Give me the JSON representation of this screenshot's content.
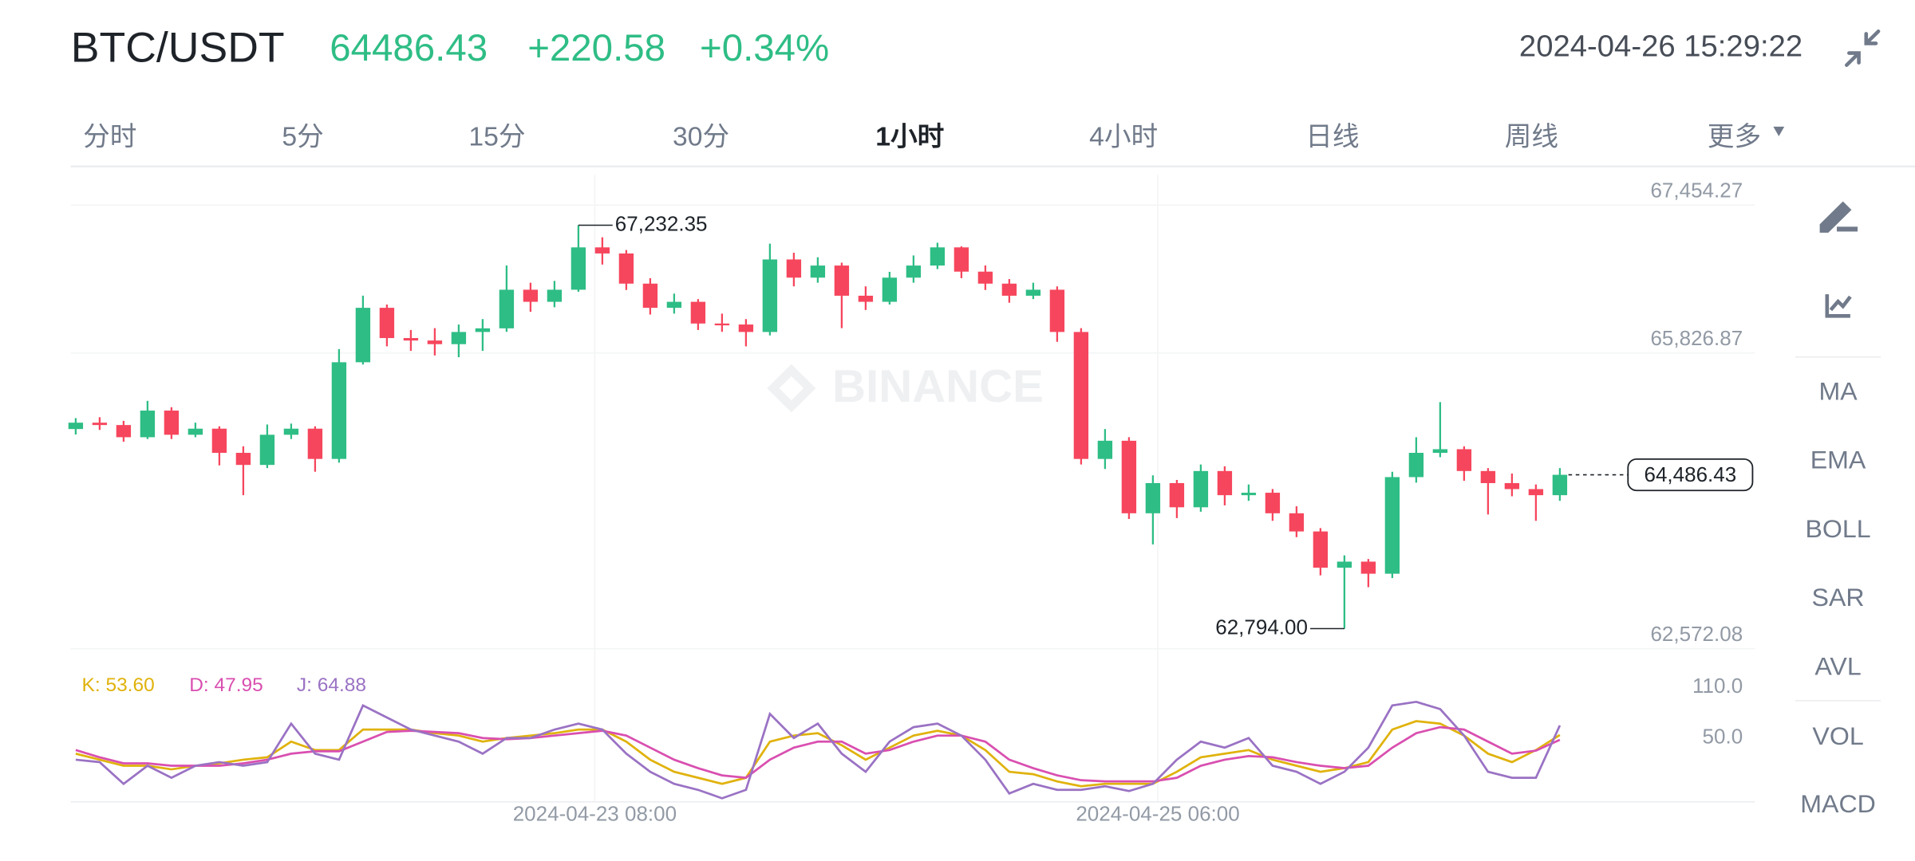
{
  "header": {
    "symbol": "BTC/USDT",
    "price": "64486.43",
    "change": "+220.58",
    "change_pct": "+0.34%",
    "datetime": "2024-04-26 15:29:22"
  },
  "tabs": [
    "分时",
    "5分",
    "15分",
    "30分",
    "1小时",
    "4小时",
    "日线",
    "周线",
    "更多"
  ],
  "active_tab": 4,
  "tools": [
    "MA",
    "EMA",
    "BOLL",
    "SAR",
    "AVL",
    "VOL",
    "MACD"
  ],
  "chart_data": [
    {
      "type": "candlestick",
      "up_color": "#2ebd85",
      "down_color": "#f6465d",
      "watermark": "BINANCE",
      "ylim": [
        62572.08,
        67787
      ],
      "yticks": [
        {
          "value": 67454.27,
          "label": "67,454.27"
        },
        {
          "value": 65826.87,
          "label": "65,826.87"
        },
        {
          "value": 62572.08,
          "label": "62,572.08"
        }
      ],
      "max_label": "67,232.35",
      "min_label": "62,794.00",
      "last_price_label": "64,486.43",
      "candles": [
        [
          64990,
          65110,
          64930,
          65060
        ],
        [
          65060,
          65120,
          64980,
          65034
        ],
        [
          65034,
          65080,
          64850,
          64900
        ],
        [
          64900,
          65300,
          64880,
          65193
        ],
        [
          65193,
          65230,
          64880,
          64927
        ],
        [
          64927,
          65060,
          64900,
          64994
        ],
        [
          64994,
          65020,
          64590,
          64728
        ],
        [
          64728,
          64800,
          64262,
          64595
        ],
        [
          64595,
          65040,
          64560,
          64927
        ],
        [
          64927,
          65050,
          64880,
          64994
        ],
        [
          64994,
          65020,
          64520,
          64661
        ],
        [
          64661,
          65870,
          64620,
          65725
        ],
        [
          65725,
          66457,
          65700,
          66324
        ],
        [
          66324,
          66360,
          65900,
          65991
        ],
        [
          65991,
          66080,
          65850,
          65964
        ],
        [
          65964,
          66100,
          65800,
          65924
        ],
        [
          65924,
          66140,
          65780,
          66058
        ],
        [
          66058,
          66200,
          65850,
          66098
        ],
        [
          66098,
          66790,
          66060,
          66523
        ],
        [
          66523,
          66600,
          66280,
          66390
        ],
        [
          66390,
          66620,
          66330,
          66523
        ],
        [
          66523,
          67232.35,
          66500,
          66989
        ],
        [
          66989,
          67100,
          66800,
          66922
        ],
        [
          66922,
          66960,
          66520,
          66590
        ],
        [
          66590,
          66650,
          66250,
          66324
        ],
        [
          66324,
          66480,
          66260,
          66390
        ],
        [
          66390,
          66420,
          66080,
          66151
        ],
        [
          66151,
          66260,
          66060,
          66140
        ],
        [
          66140,
          66200,
          65900,
          66058
        ],
        [
          66058,
          67030,
          66020,
          66856
        ],
        [
          66856,
          66930,
          66560,
          66656
        ],
        [
          66656,
          66880,
          66600,
          66789
        ],
        [
          66789,
          66820,
          66100,
          66457
        ],
        [
          66457,
          66560,
          66300,
          66390
        ],
        [
          66390,
          66720,
          66360,
          66656
        ],
        [
          66656,
          66900,
          66600,
          66789
        ],
        [
          66789,
          67040,
          66750,
          66989
        ],
        [
          66989,
          67000,
          66650,
          66722
        ],
        [
          66722,
          66790,
          66520,
          66590
        ],
        [
          66590,
          66640,
          66380,
          66457
        ],
        [
          66457,
          66600,
          66420,
          66523
        ],
        [
          66523,
          66560,
          65950,
          66058
        ],
        [
          66058,
          66100,
          64600,
          64661
        ],
        [
          64661,
          64990,
          64550,
          64861
        ],
        [
          64861,
          64900,
          64000,
          64063
        ],
        [
          64063,
          64480,
          63720,
          64395
        ],
        [
          64395,
          64430,
          64010,
          64129
        ],
        [
          64129,
          64600,
          64080,
          64528
        ],
        [
          64528,
          64580,
          64150,
          64262
        ],
        [
          64262,
          64380,
          64200,
          64289
        ],
        [
          64289,
          64330,
          63980,
          64063
        ],
        [
          64063,
          64140,
          63800,
          63863
        ],
        [
          63863,
          63900,
          63380,
          63464
        ],
        [
          63464,
          63600,
          62794.0,
          63531
        ],
        [
          63531,
          63560,
          63250,
          63398
        ],
        [
          63398,
          64520,
          63350,
          64461
        ],
        [
          64461,
          64900,
          64400,
          64728
        ],
        [
          64728,
          65286,
          64680,
          64768
        ],
        [
          64768,
          64800,
          64420,
          64528
        ],
        [
          64528,
          64560,
          64050,
          64395
        ],
        [
          64395,
          64500,
          64250,
          64329
        ],
        [
          64329,
          64380,
          63980,
          64262
        ],
        [
          64262,
          64560,
          64200,
          64486.43
        ]
      ]
    },
    {
      "type": "line",
      "ylim": [
        -25.7,
        152.9
      ],
      "yticks": [
        {
          "value": 110,
          "label": "110.0"
        },
        {
          "value": 50,
          "label": "50.0"
        }
      ],
      "x_labels": [
        "2024-04-23 08:00",
        "2024-04-25 06:00"
      ],
      "series": [
        {
          "name": "K: 53.60",
          "color": "#e0b20c",
          "values": [
            31.4,
            24.3,
            17.1,
            17.1,
            12.9,
            17.1,
            20,
            24.3,
            27.1,
            45.7,
            35.7,
            35.7,
            60,
            60,
            60,
            55.7,
            52.9,
            45.7,
            50,
            52.9,
            55.7,
            60,
            60,
            45.7,
            24.3,
            10,
            2.9,
            -4.3,
            2.9,
            45.7,
            52.9,
            55.7,
            41.4,
            24.3,
            38.6,
            52.9,
            58.6,
            52.9,
            35.7,
            10,
            7.1,
            -1.4,
            -7.1,
            -4.3,
            -4.3,
            -4.3,
            10,
            27.1,
            31.4,
            35.7,
            24.3,
            17.1,
            10,
            14.3,
            21.4,
            60,
            70,
            67.1,
            52.9,
            31.4,
            21.4,
            35.7,
            53.6
          ]
        },
        {
          "name": "D: 47.95",
          "color": "#d94fb0",
          "values": [
            35.7,
            27.1,
            20,
            20,
            17.1,
            17.1,
            17.1,
            20,
            24.3,
            31.4,
            34.3,
            34.3,
            45.7,
            57.1,
            58.6,
            57.1,
            55.7,
            50,
            48.6,
            50,
            52.9,
            55.7,
            58.6,
            52.9,
            38.6,
            24.3,
            14.3,
            5.7,
            2.9,
            24.3,
            38.6,
            45.7,
            45.7,
            31.4,
            35.7,
            45.7,
            52.9,
            52.9,
            45.7,
            24.3,
            14.3,
            5.7,
            0,
            -1.4,
            -1.4,
            -1.4,
            2.9,
            17.1,
            24.3,
            28.6,
            27.1,
            21.4,
            17.1,
            14.3,
            17.1,
            38.6,
            55.7,
            62.9,
            60,
            45.7,
            31.4,
            35,
            47.95
          ]
        },
        {
          "name": "J: 64.88",
          "color": "#9a72c4",
          "values": [
            24.3,
            21.4,
            -4.3,
            17.1,
            2.9,
            17.1,
            21.4,
            17.1,
            21.4,
            67.1,
            31.4,
            24.3,
            88.6,
            74.3,
            60,
            52.9,
            45.7,
            31.4,
            50,
            50,
            60,
            67.1,
            60,
            31.4,
            10,
            -4.3,
            -11.4,
            -21.4,
            -11.4,
            78.6,
            50,
            67.1,
            31.4,
            10,
            45.7,
            62.9,
            67.1,
            52.9,
            24.3,
            -15.7,
            -4.3,
            -11.4,
            -11.4,
            -7.1,
            -12.9,
            -4.3,
            24.3,
            45.7,
            38.6,
            50,
            17.1,
            10,
            -4.3,
            10,
            38.6,
            88.6,
            92.9,
            84.3,
            52.9,
            10,
            2.9,
            2.9,
            64.88
          ]
        }
      ]
    }
  ]
}
